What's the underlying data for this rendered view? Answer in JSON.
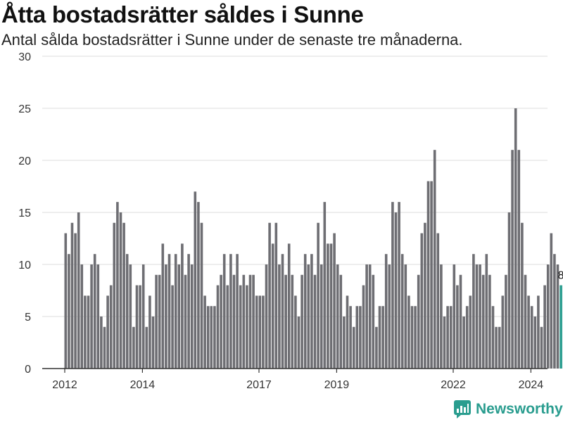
{
  "header": {
    "title": "Åtta bostadsrätter såldes i Sunne",
    "subtitle": "Antal sålda bostadsrätter i Sunne under de senaste tre månaderna."
  },
  "brand": {
    "name": "Newsworthy",
    "icon": "newsworthy-logo-icon",
    "color": "#2a9d8f"
  },
  "chart_data": {
    "type": "bar",
    "title": "Åtta bostadsrätter såldes i Sunne",
    "subtitle": "Antal sålda bostadsrätter i Sunne under de senaste tre månaderna.",
    "xlabel": "",
    "ylabel": "",
    "ylim": [
      0,
      30
    ],
    "yticks": [
      0,
      5,
      10,
      15,
      20,
      25,
      30
    ],
    "xtick_labels": [
      "2012",
      "2014",
      "2017",
      "2019",
      "2022",
      "2024"
    ],
    "x_start": "2012-01",
    "frequency": "monthly",
    "bar_color": "#6e6e73",
    "highlight_color": "#2a9d8f",
    "highlight_label": "8",
    "grid": true,
    "legend": "none",
    "values": [
      13,
      11,
      14,
      13,
      15,
      10,
      7,
      7,
      10,
      11,
      10,
      5,
      4,
      7,
      8,
      14,
      16,
      15,
      14,
      11,
      10,
      4,
      8,
      8,
      10,
      4,
      7,
      5,
      9,
      9,
      12,
      10,
      11,
      8,
      11,
      10,
      12,
      9,
      11,
      10,
      17,
      16,
      14,
      7,
      6,
      6,
      6,
      8,
      9,
      11,
      8,
      11,
      9,
      11,
      8,
      9,
      8,
      9,
      9,
      7,
      7,
      7,
      10,
      14,
      12,
      14,
      10,
      11,
      9,
      12,
      9,
      7,
      5,
      9,
      11,
      10,
      11,
      9,
      14,
      10,
      16,
      12,
      12,
      13,
      10,
      9,
      5,
      7,
      6,
      4,
      6,
      6,
      8,
      10,
      10,
      9,
      4,
      6,
      6,
      11,
      10,
      16,
      15,
      16,
      11,
      10,
      7,
      6,
      6,
      9,
      13,
      14,
      18,
      18,
      21,
      13,
      10,
      5,
      6,
      6,
      10,
      8,
      9,
      5,
      6,
      7,
      11,
      10,
      10,
      9,
      11,
      9,
      6,
      4,
      4,
      7,
      9,
      15,
      21,
      25,
      21,
      14,
      9,
      7,
      6,
      5,
      7,
      4,
      8,
      10,
      13,
      11,
      10,
      8
    ]
  }
}
